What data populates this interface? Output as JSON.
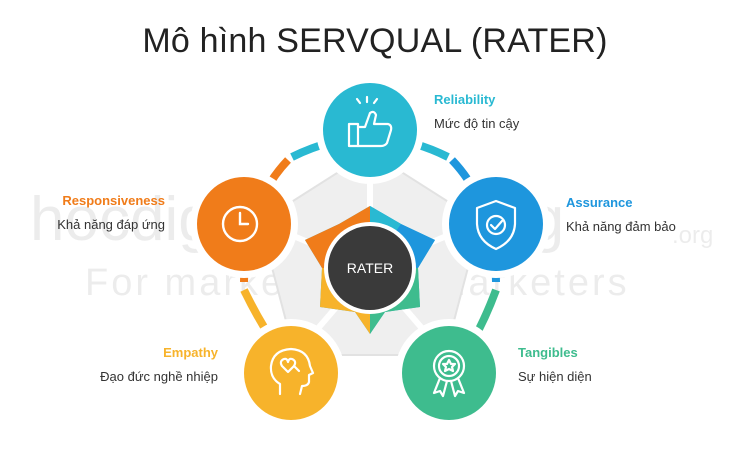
{
  "title": "Mô hình SERVQUAL (RATER)",
  "center_label": "RATER",
  "watermark": {
    "brand": "hocdigitalmarketing",
    "suffix": ".org",
    "tagline": "For marketers by marketers"
  },
  "nodes": [
    {
      "key": "reliability",
      "name": "Reliability",
      "desc": "Mức độ tin cậy",
      "color": "#29b9d2",
      "icon": "thumbs-up-icon"
    },
    {
      "key": "assurance",
      "name": "Assurance",
      "desc": "Khả năng đảm bảo",
      "color": "#1e96dd",
      "icon": "shield-check-icon"
    },
    {
      "key": "tangibles",
      "name": "Tangibles",
      "desc": "Sự hiện diện",
      "color": "#3ebc8e",
      "icon": "award-ribbon-icon"
    },
    {
      "key": "empathy",
      "name": "Empathy",
      "desc": "Đạo đức nghề nhiệp",
      "color": "#f7b32b",
      "icon": "head-heart-icon"
    },
    {
      "key": "responsiveness",
      "name": "Responsiveness",
      "desc": "Khả năng đáp ứng",
      "color": "#f07c1a",
      "icon": "clock-icon"
    }
  ]
}
